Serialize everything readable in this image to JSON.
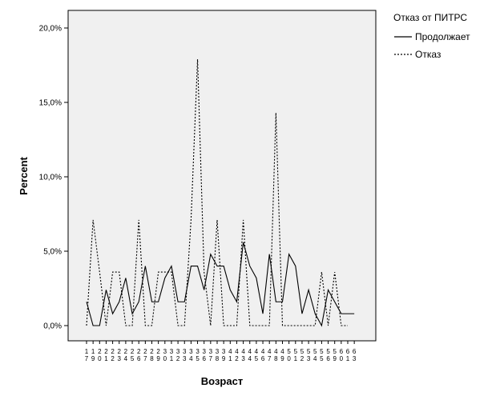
{
  "chart_data": {
    "type": "line",
    "title": "",
    "xlabel": "Возраст",
    "ylabel": "Percent",
    "ylim": [
      0,
      20.5
    ],
    "yticks": [
      0,
      5,
      10,
      15,
      20
    ],
    "ytick_labels": [
      "0,0%",
      "5,0%",
      "10,0%",
      "15,0%",
      "20,0%"
    ],
    "categories": [
      "17",
      "19",
      "20",
      "21",
      "22",
      "23",
      "24",
      "25",
      "26",
      "27",
      "28",
      "29",
      "30",
      "31",
      "32",
      "33",
      "34",
      "35",
      "36",
      "37",
      "38",
      "39",
      "41",
      "42",
      "43",
      "44",
      "45",
      "46",
      "47",
      "48",
      "49",
      "50",
      "51",
      "52",
      "53",
      "54",
      "55",
      "56",
      "59",
      "60",
      "61",
      "63"
    ],
    "legend": {
      "title": "Отказ от ПИТРС",
      "placement": "right"
    },
    "series": [
      {
        "name": "Продолжает",
        "style": "solid",
        "values": [
          1.6,
          0.0,
          0.0,
          2.4,
          0.8,
          1.6,
          3.2,
          0.8,
          1.6,
          4.0,
          1.6,
          1.6,
          3.2,
          4.0,
          1.6,
          1.6,
          4.0,
          4.0,
          2.4,
          4.8,
          4.0,
          4.0,
          2.4,
          1.6,
          5.6,
          4.0,
          3.2,
          0.8,
          4.8,
          1.6,
          1.6,
          4.8,
          4.0,
          0.8,
          2.4,
          0.8,
          0.0,
          2.4,
          1.6,
          0.8,
          0.8,
          0.8
        ]
      },
      {
        "name": "Отказ",
        "style": "dashed",
        "values": [
          0.0,
          7.1,
          3.6,
          0.0,
          3.6,
          3.6,
          0.0,
          0.0,
          7.1,
          0.0,
          0.0,
          3.6,
          3.6,
          3.6,
          0.0,
          0.0,
          7.1,
          17.9,
          3.6,
          0.0,
          7.1,
          0.0,
          0.0,
          0.0,
          7.1,
          0.0,
          0.0,
          0.0,
          0.0,
          14.3,
          0.0,
          0.0,
          0.0,
          0.0,
          0.0,
          0.0,
          3.6,
          0.0,
          3.6,
          0.0,
          0.0,
          null
        ]
      }
    ],
    "grid": false
  }
}
